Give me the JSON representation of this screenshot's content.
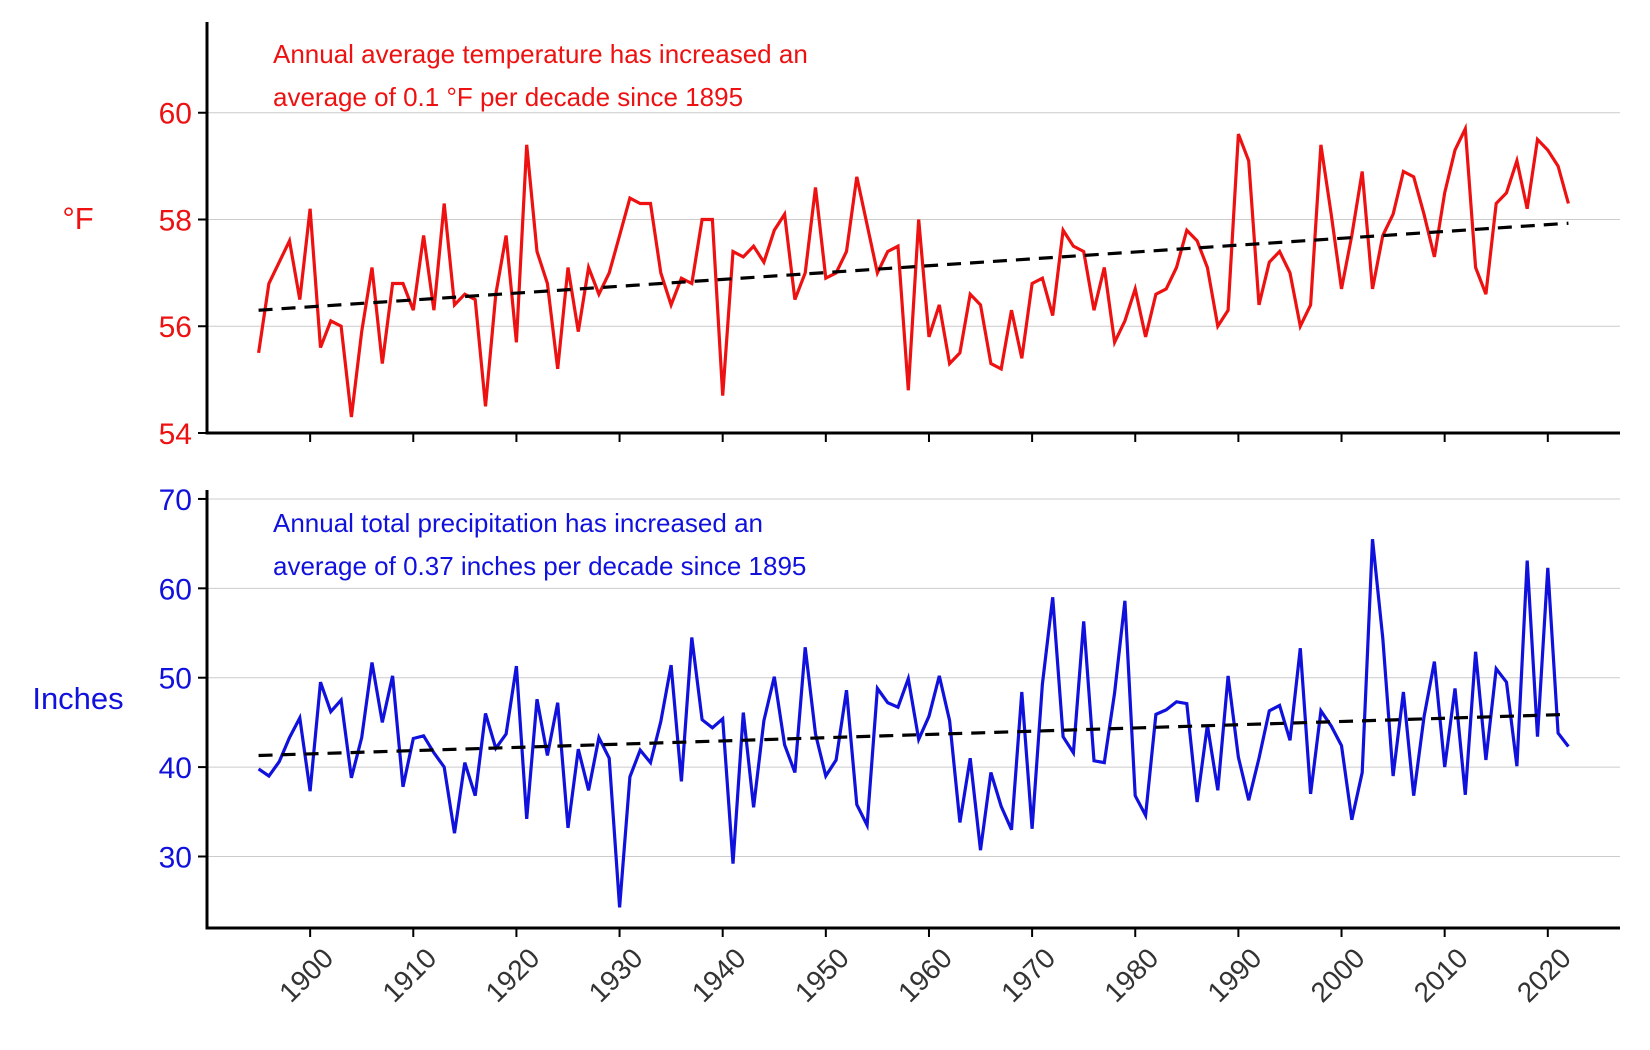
{
  "chart_data": [
    {
      "type": "line",
      "panel": "temperature",
      "ylabel": "°F",
      "annotation": [
        "Annual average temperature has increased an",
        "average of 0.1 °F per decade since 1895"
      ],
      "ylim": [
        54,
        61.7
      ],
      "yticks": [
        54,
        56,
        58,
        60
      ],
      "xlim": [
        1890,
        2027
      ],
      "xticks": [
        1900,
        1910,
        1920,
        1930,
        1940,
        1950,
        1960,
        1970,
        1980,
        1990,
        2000,
        2010,
        2020
      ],
      "grid": true,
      "series": [
        {
          "color": "#ee1111",
          "x_start": 1895,
          "values": [
            55.5,
            56.8,
            57.2,
            57.6,
            56.5,
            58.2,
            55.6,
            56.1,
            56.0,
            54.3,
            55.9,
            57.1,
            55.3,
            56.8,
            56.8,
            56.3,
            57.7,
            56.3,
            58.3,
            56.4,
            56.6,
            56.5,
            54.5,
            56.6,
            57.7,
            55.7,
            59.4,
            57.4,
            56.8,
            55.2,
            57.1,
            55.9,
            57.1,
            56.6,
            57.0,
            57.7,
            58.4,
            58.3,
            58.3,
            57.0,
            56.4,
            56.9,
            56.8,
            58.0,
            58.0,
            54.7,
            57.4,
            57.3,
            57.5,
            57.2,
            57.8,
            58.1,
            56.5,
            57.0,
            58.6,
            56.9,
            57.0,
            57.4,
            58.8,
            57.9,
            57.0,
            57.4,
            57.5,
            54.8,
            58.0,
            55.8,
            56.4,
            55.3,
            55.5,
            56.6,
            56.4,
            55.3,
            55.2,
            56.3,
            55.4,
            56.8,
            56.9,
            56.2,
            57.8,
            57.5,
            57.4,
            56.3,
            57.1,
            55.7,
            56.1,
            56.7,
            55.8,
            56.6,
            56.7,
            57.1,
            57.8,
            57.6,
            57.1,
            56.0,
            56.3,
            59.6,
            59.1,
            56.4,
            57.2,
            57.4,
            57.0,
            56.0,
            56.4,
            59.4,
            58.1,
            56.7,
            57.7,
            58.9,
            56.7,
            57.7,
            58.1,
            58.9,
            58.8,
            58.1,
            57.3,
            58.5,
            59.3,
            59.7,
            57.1,
            56.6,
            58.3,
            58.5,
            59.1,
            58.2,
            59.5,
            59.3,
            59.0,
            58.3
          ]
        },
        {
          "name": "trend",
          "color": "#000000",
          "x": [
            1895,
            2022
          ],
          "y": [
            56.3,
            57.93
          ]
        }
      ]
    },
    {
      "type": "line",
      "panel": "precipitation",
      "ylabel": "Inches",
      "annotation": [
        "Annual total precipitation has increased an",
        "average of 0.37 inches per decade since 1895"
      ],
      "ylim": [
        22,
        71
      ],
      "yticks": [
        30,
        40,
        50,
        60,
        70
      ],
      "xlim": [
        1890,
        2027
      ],
      "xticks": [
        1900,
        1910,
        1920,
        1930,
        1940,
        1950,
        1960,
        1970,
        1980,
        1990,
        2000,
        2010,
        2020
      ],
      "grid": true,
      "series": [
        {
          "color": "#1111dd",
          "x_start": 1895,
          "values": [
            39.8,
            39.0,
            40.6,
            43.3,
            45.5,
            37.3,
            49.5,
            46.2,
            47.5,
            38.8,
            43.3,
            51.7,
            45.0,
            50.2,
            37.8,
            43.2,
            43.5,
            41.6,
            40.0,
            32.6,
            40.5,
            36.8,
            46.0,
            42.1,
            43.7,
            51.3,
            34.2,
            47.6,
            41.3,
            47.2,
            33.2,
            42.0,
            37.4,
            43.3,
            41.0,
            24.3,
            38.9,
            41.9,
            40.5,
            45.1,
            51.4,
            38.4,
            54.5,
            45.3,
            44.4,
            45.4,
            29.2,
            46.1,
            35.5,
            45.2,
            50.1,
            42.5,
            39.4,
            53.4,
            43.7,
            39.0,
            40.8,
            48.6,
            35.8,
            33.5,
            48.8,
            47.2,
            46.7,
            49.9,
            43.1,
            45.7,
            50.2,
            45.2,
            33.8,
            41.0,
            30.7,
            39.4,
            35.6,
            33.0,
            48.4,
            33.1,
            49.3,
            59.0,
            43.4,
            41.6,
            56.3,
            40.7,
            40.5,
            48.3,
            58.6,
            36.8,
            34.6,
            45.9,
            46.4,
            47.3,
            47.1,
            36.1,
            44.7,
            37.4,
            50.2,
            41.1,
            36.3,
            41.0,
            46.3,
            46.9,
            43.0,
            53.3,
            37.0,
            46.3,
            44.6,
            42.4,
            34.1,
            39.4,
            65.5,
            54.4,
            39.0,
            48.4,
            36.8,
            45.6,
            51.8,
            40.0,
            48.8,
            36.9,
            52.9,
            40.8,
            51.0,
            49.5,
            40.1,
            63.1,
            43.4,
            62.3,
            43.8,
            42.3
          ]
        },
        {
          "name": "trend",
          "color": "#000000",
          "x": [
            1895,
            2022
          ],
          "y": [
            41.3,
            45.9
          ]
        }
      ]
    }
  ]
}
